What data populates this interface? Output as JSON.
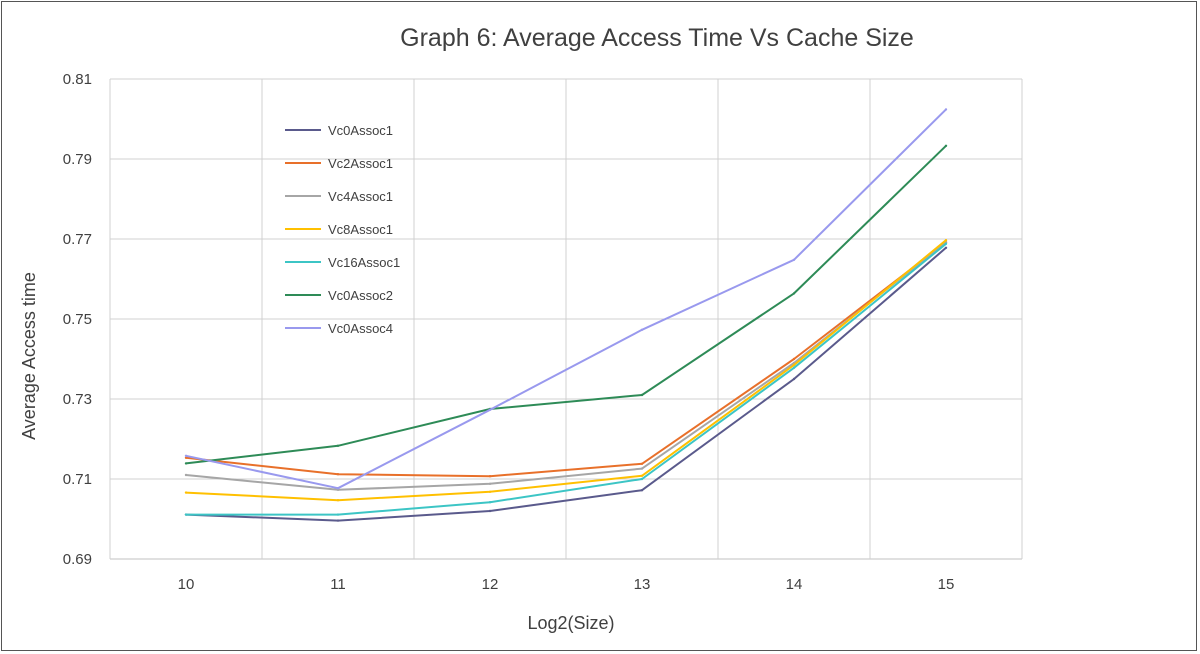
{
  "chart_data": {
    "type": "line",
    "title": "Graph 6: Average Access Time Vs Cache Size",
    "xlabel": "Log2(Size)",
    "ylabel": "Average Access time",
    "categories": [
      "10",
      "11",
      "12",
      "13",
      "14",
      "15"
    ],
    "ylim": [
      0.69,
      0.81
    ],
    "yticks": [
      "0.69",
      "0.71",
      "0.73",
      "0.75",
      "0.77",
      "0.79",
      "0.81"
    ],
    "grid": true,
    "legend_position": "inside-top-left",
    "series": [
      {
        "name": "Vc0Assoc1",
        "color": "#5a5a8c",
        "values": [
          0.7011,
          0.6996,
          0.702,
          0.7072,
          0.735,
          0.7678
        ]
      },
      {
        "name": "Vc2Assoc1",
        "color": "#e8702a",
        "values": [
          0.7153,
          0.7112,
          0.7107,
          0.7138,
          0.74,
          0.7692
        ]
      },
      {
        "name": "Vc4Assoc1",
        "color": "#a6a6a6",
        "values": [
          0.711,
          0.7073,
          0.7088,
          0.7126,
          0.739,
          0.7692
        ]
      },
      {
        "name": "Vc8Assoc1",
        "color": "#ffc000",
        "values": [
          0.7066,
          0.7047,
          0.7068,
          0.7108,
          0.7385,
          0.7697
        ]
      },
      {
        "name": "Vc16Assoc1",
        "color": "#3cc5c5",
        "values": [
          0.7011,
          0.7011,
          0.7042,
          0.71,
          0.7378,
          0.7688
        ]
      },
      {
        "name": "Vc0Assoc2",
        "color": "#2e8b57",
        "values": [
          0.7139,
          0.7183,
          0.7275,
          0.731,
          0.7564,
          0.7933
        ]
      },
      {
        "name": "Vc0Assoc4",
        "color": "#9999ee",
        "values": [
          0.7158,
          0.7077,
          0.7273,
          0.7473,
          0.7648,
          0.8024
        ]
      }
    ]
  }
}
